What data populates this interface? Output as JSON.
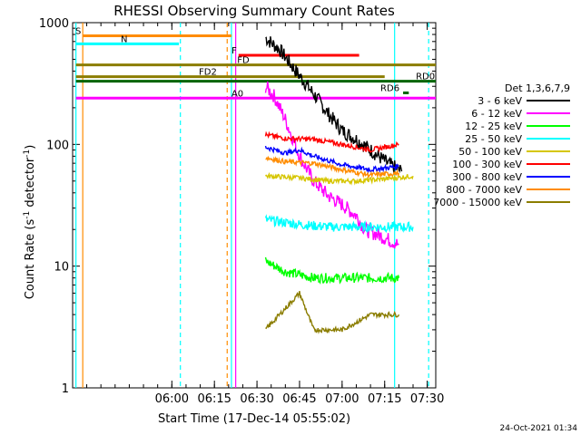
{
  "chart_data": {
    "type": "line",
    "title": "RHESSI Observing Summary Count Rates",
    "xlabel": "Start Time (17-Dec-14 05:55:02)",
    "ylabel_main": "Count Rate (s",
    "ylabel_sup": "-1",
    "ylabel_tail": " detector",
    "ylabel_sup2": "-1",
    "ylabel_end": ")",
    "x_range_minutes": [
      325.03,
      453.0
    ],
    "y_range": [
      1,
      1000
    ],
    "y_scale": "log",
    "x_ticks": [
      {
        "t": 360,
        "label": "06:00"
      },
      {
        "t": 375,
        "label": "06:15"
      },
      {
        "t": 390,
        "label": "06:30"
      },
      {
        "t": 405,
        "label": "06:45"
      },
      {
        "t": 420,
        "label": "07:00"
      },
      {
        "t": 435,
        "label": "07:15"
      },
      {
        "t": 450,
        "label": "07:30"
      }
    ],
    "y_ticks": [
      {
        "v": 1,
        "label": "1"
      },
      {
        "v": 10,
        "label": "10"
      },
      {
        "v": 100,
        "label": "100"
      },
      {
        "v": 1000,
        "label": "1000"
      }
    ],
    "legend_header": "Det 1,3,6,7,9",
    "series": [
      {
        "name": "3 - 6 keV",
        "color": "#000000",
        "points": [
          [
            393,
            750
          ],
          [
            398,
            600
          ],
          [
            403,
            420
          ],
          [
            410,
            260
          ],
          [
            415,
            180
          ],
          [
            420,
            130
          ],
          [
            425,
            110
          ],
          [
            430,
            90
          ],
          [
            436,
            70
          ],
          [
            441,
            60
          ]
        ]
      },
      {
        "name": "6 - 12 keV",
        "color": "#ff00ff",
        "points": [
          [
            393,
            300
          ],
          [
            396,
            250
          ],
          [
            400,
            160
          ],
          [
            405,
            80
          ],
          [
            410,
            50
          ],
          [
            415,
            38
          ],
          [
            420,
            32
          ],
          [
            425,
            26
          ],
          [
            428,
            20
          ],
          [
            433,
            18
          ],
          [
            440,
            15
          ]
        ]
      },
      {
        "name": "12 - 25 keV",
        "color": "#00ff00",
        "points": [
          [
            393,
            11
          ],
          [
            400,
            9
          ],
          [
            410,
            8
          ],
          [
            420,
            8
          ],
          [
            430,
            8
          ],
          [
            440,
            8
          ]
        ]
      },
      {
        "name": "25 - 50 keV",
        "color": "#00ffff",
        "points": [
          [
            393,
            24
          ],
          [
            405,
            22
          ],
          [
            415,
            21
          ],
          [
            425,
            21
          ],
          [
            435,
            21
          ],
          [
            445,
            21
          ]
        ]
      },
      {
        "name": "50 - 100 keV",
        "color": "#d6c600",
        "points": [
          [
            393,
            55
          ],
          [
            405,
            53
          ],
          [
            415,
            50
          ],
          [
            425,
            50
          ],
          [
            435,
            52
          ],
          [
            445,
            55
          ]
        ]
      },
      {
        "name": "100 - 300 keV",
        "color": "#ff0000",
        "points": [
          [
            393,
            120
          ],
          [
            400,
            112
          ],
          [
            410,
            110
          ],
          [
            420,
            100
          ],
          [
            430,
            90
          ],
          [
            440,
            100
          ]
        ]
      },
      {
        "name": "300 - 800 keV",
        "color": "#0000ff",
        "points": [
          [
            393,
            95
          ],
          [
            400,
            85
          ],
          [
            405,
            90
          ],
          [
            410,
            80
          ],
          [
            420,
            68
          ],
          [
            430,
            62
          ],
          [
            440,
            66
          ]
        ]
      },
      {
        "name": "800 - 7000 keV",
        "color": "#ff8c00",
        "points": [
          [
            393,
            78
          ],
          [
            400,
            72
          ],
          [
            410,
            70
          ],
          [
            420,
            62
          ],
          [
            430,
            56
          ],
          [
            440,
            58
          ]
        ]
      },
      {
        "name": "7000 - 15000 keV",
        "color": "#8b7d00",
        "points": [
          [
            393,
            3
          ],
          [
            405,
            6
          ],
          [
            410,
            3
          ],
          [
            420,
            3
          ],
          [
            430,
            4
          ],
          [
            440,
            4
          ]
        ]
      }
    ],
    "annotations": [
      {
        "label": "S",
        "color": "#ff8c00"
      },
      {
        "label": "N",
        "color": "#00ffff"
      },
      {
        "label": "F",
        "color": "#ff0000"
      },
      {
        "label": "FD",
        "color": "#8b7d00"
      },
      {
        "label": "FD2",
        "color": "#8b7d00"
      },
      {
        "label": "RD0",
        "color": "#006400"
      },
      {
        "label": "RD6",
        "color": "#006400"
      },
      {
        "label": "A0",
        "color": "#ff00ff"
      }
    ],
    "footer_date": "24-Oct-2021 01:34"
  }
}
